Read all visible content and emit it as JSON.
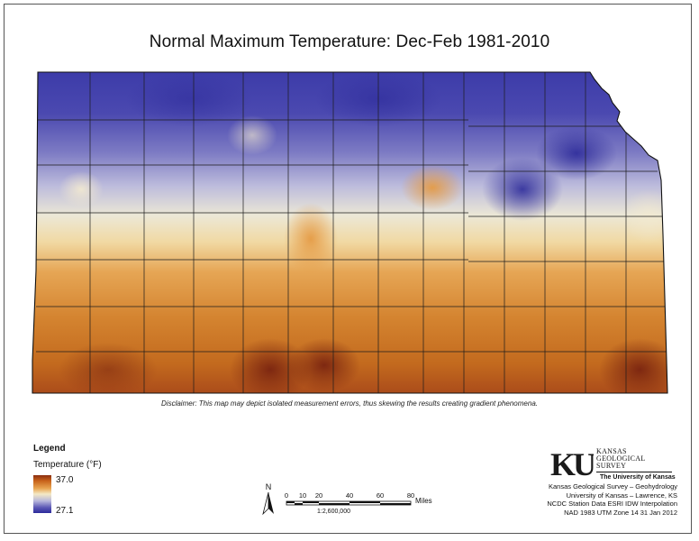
{
  "map": {
    "title": "Normal Maximum Temperature:  Dec-Feb 1981-2010",
    "disclaimer": "Disclaimer: This map may depict isolated measurement errors, thus skewing the results creating gradient phenomena."
  },
  "legend": {
    "title": "Legend",
    "subtitle": "Temperature (°F)",
    "max_label": "37.0",
    "min_label": "27.1",
    "ramp_colors": [
      "#8b2e10",
      "#c8631a",
      "#e8a652",
      "#f4e9c6",
      "#b8b7dc",
      "#5e5ab7",
      "#2c2a9b"
    ]
  },
  "north_arrow": {
    "label": "N"
  },
  "scale_bar": {
    "ticks": [
      "0",
      "10",
      "20",
      "40",
      "60",
      "80"
    ],
    "unit": "Miles",
    "ratio": "1:2,600,000"
  },
  "branding": {
    "logo_text": "KU",
    "org_lines": [
      "KANSAS",
      "GEOLOGICAL",
      "SURVEY"
    ],
    "university": "The University of Kansas",
    "colors": {
      "ku_blue": "#1a1a1a"
    }
  },
  "credits": [
    "Kansas Geological Survey – Geohydrology",
    "University of Kansas – Lawrence, KS",
    "NCDC Station Data  ESRI IDW Interpolation",
    "NAD 1983 UTM Zone 14  31 Jan 2012"
  ]
}
